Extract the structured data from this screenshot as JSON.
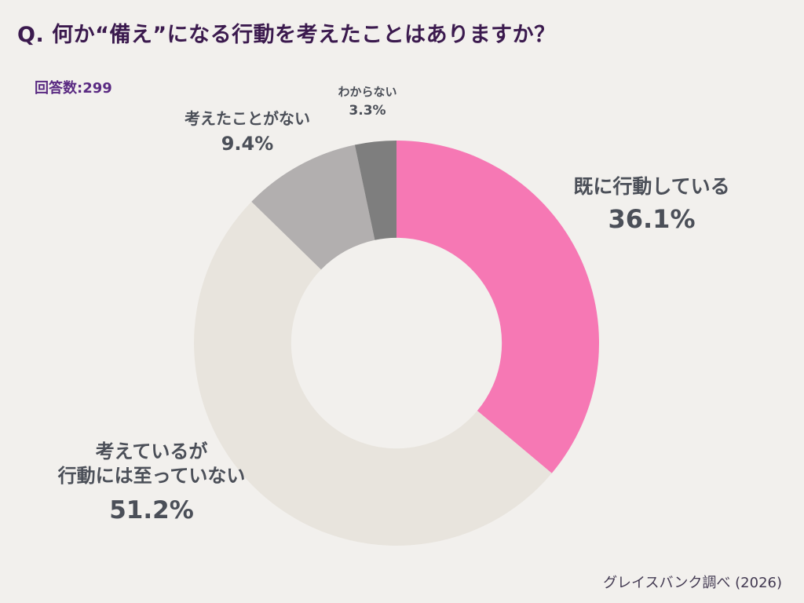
{
  "title": "Q. 何か“備え”になる行動を考えたことはありますか？",
  "respondents_label": "回答数:299",
  "source": "グレイスバンク調べ (2026)",
  "colors": {
    "background": "#f2f0ed",
    "title_text": "#3b1a4e",
    "respondents_text": "#5a2a82",
    "label_text": "#4b4f58",
    "source_text": "#433a52"
  },
  "chart_data": {
    "type": "pie",
    "subtype": "donut",
    "title": "何か“備え”になる行動を考えたことはありますか？",
    "sample_size": 299,
    "start_angle_deg": 0,
    "direction": "clockwise",
    "inner_radius_ratio": 0.52,
    "legend_position": "labels-around-chart",
    "slices": [
      {
        "label": "既に行動している",
        "value": 36.1,
        "pct_label": "36.1%",
        "color": "#f678b4"
      },
      {
        "label": "考えているが\n行動には至っていない",
        "value": 51.2,
        "pct_label": "51.2%",
        "color": "#e8e4dd"
      },
      {
        "label": "考えたことがない",
        "value": 9.4,
        "pct_label": "9.4%",
        "color": "#b2afaf"
      },
      {
        "label": "わからない",
        "value": 3.3,
        "pct_label": "3.3%",
        "color": "#7e7e7e"
      }
    ]
  }
}
